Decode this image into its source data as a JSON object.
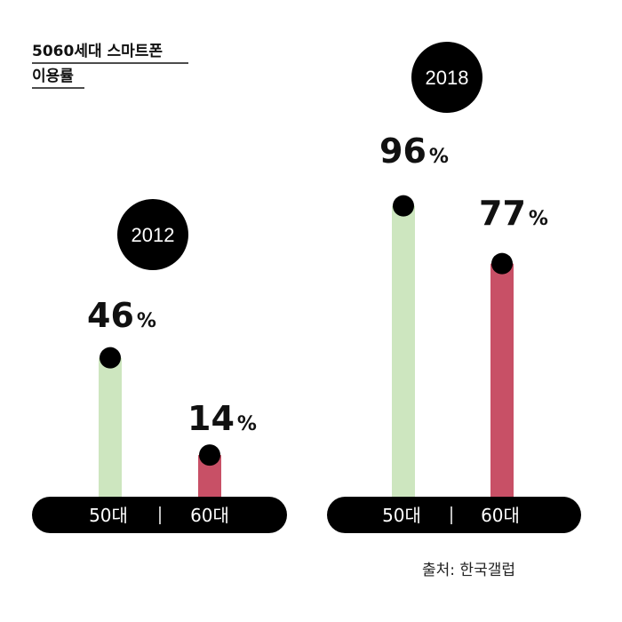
{
  "chart_data": {
    "type": "bar",
    "title_lines": [
      "5060세대 스마트폰",
      "이용률"
    ],
    "groups": [
      {
        "year": "2012",
        "categories": [
          "50대",
          "60대"
        ],
        "values": [
          46,
          14
        ]
      },
      {
        "year": "2018",
        "categories": [
          "50대",
          "60대"
        ],
        "values": [
          96,
          77
        ]
      }
    ],
    "unit": "%",
    "ylim": [
      0,
      100
    ],
    "colors": {
      "50대": "#cde6bf",
      "60대": "#c85066",
      "marker": "#000000",
      "bar_base": "#000000"
    },
    "source": "출처: 한국갤럽"
  }
}
